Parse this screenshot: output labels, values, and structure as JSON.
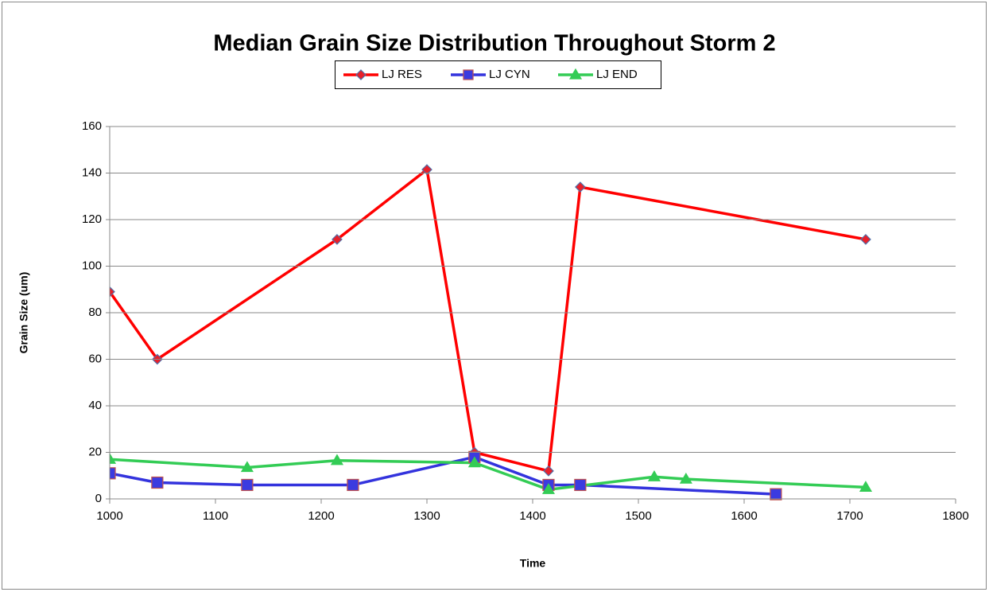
{
  "chart_data": {
    "type": "line",
    "title": "Median Grain Size Distribution Throughout Storm 2",
    "x_label": "Time",
    "y_label": "Grain Size  (um)",
    "xlim": [
      1000,
      1800
    ],
    "xticks": [
      1000,
      1100,
      1200,
      1300,
      1400,
      1500,
      1600,
      1700,
      1800
    ],
    "ylim": [
      0,
      160
    ],
    "yticks": [
      0,
      20,
      40,
      60,
      80,
      100,
      120,
      140,
      160
    ],
    "grid": true,
    "legend": "top",
    "series": [
      {
        "name": "LJ RES",
        "color": "#ff0000",
        "marker": "diamond",
        "marker_fill": "#e8202a",
        "marker_stroke": "#4f6fa8",
        "x": [
          1000,
          1045,
          1215,
          1300,
          1345,
          1415,
          1445,
          1715
        ],
        "values": [
          89,
          60,
          111.5,
          141.5,
          20,
          12,
          134,
          111.5
        ]
      },
      {
        "name": "LJ CYN",
        "color": "#3333dd",
        "marker": "square",
        "marker_fill": "#3b3be0",
        "marker_stroke": "#c0504d",
        "x": [
          1000,
          1045,
          1130,
          1230,
          1345,
          1415,
          1445,
          1630
        ],
        "values": [
          11,
          7,
          6,
          6,
          18,
          6,
          6,
          2
        ]
      },
      {
        "name": "LJ END",
        "color": "#33cc55",
        "marker": "triangle",
        "marker_fill": "#33cc55",
        "marker_stroke": "#33cc55",
        "x": [
          1000,
          1130,
          1215,
          1345,
          1415,
          1515,
          1545,
          1715
        ],
        "values": [
          17,
          13.5,
          16.5,
          15.5,
          4,
          9.5,
          8.5,
          5
        ]
      }
    ]
  }
}
